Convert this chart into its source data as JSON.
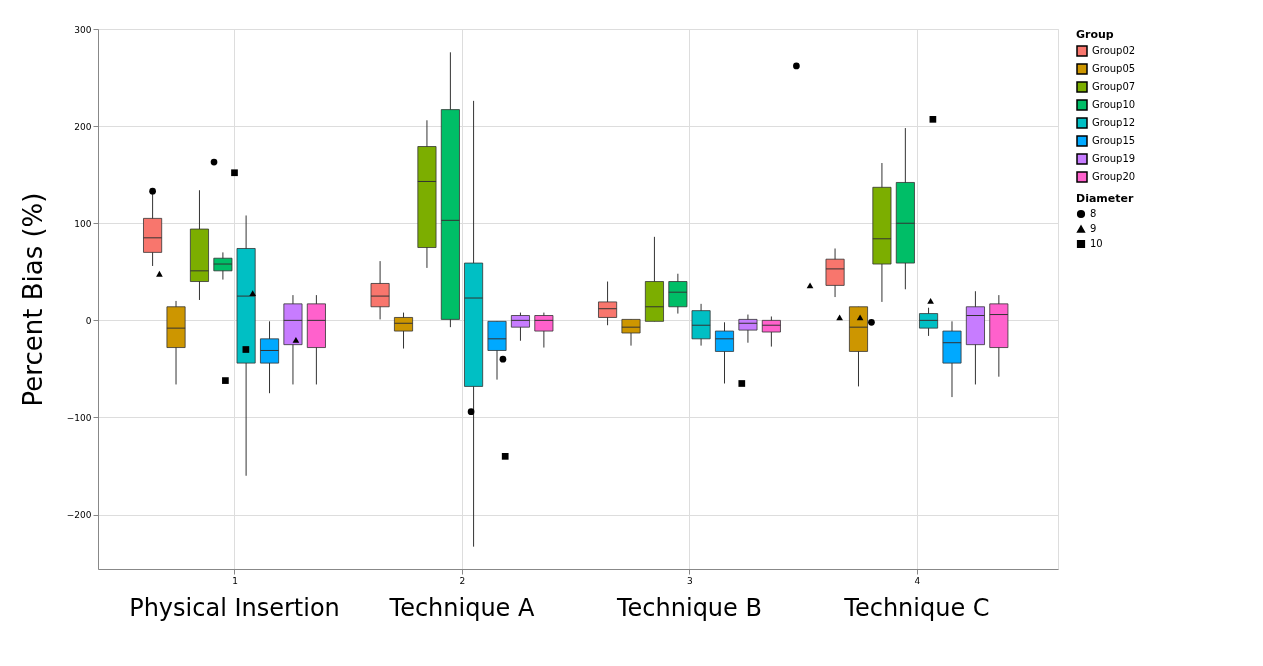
{
  "chart_data": {
    "type": "box",
    "ylabel": "Percent Bias (%)",
    "legend_title": [
      "Group",
      "Diameter"
    ],
    "legend": "right",
    "grid": true,
    "xlim": [
      0.4,
      4.62
    ],
    "xticks": [
      1,
      2,
      3,
      4
    ],
    "ylim": [
      -256,
      300
    ],
    "yticks": [
      -200,
      -100,
      0,
      100,
      200,
      300
    ],
    "annotations": [
      "Physical Insertion",
      "Technique A",
      "Technique B",
      "Technique C"
    ],
    "series": [
      {
        "name": "Group02",
        "color": "#f8766d",
        "x": [
          0.64,
          1.64,
          2.64,
          3.64
        ],
        "boxes": [
          {
            "low": 56,
            "q1": 70,
            "median": 85,
            "q3": 105,
            "high": 133
          },
          {
            "low": 1,
            "q1": 14,
            "median": 25,
            "q3": 38,
            "high": 61
          },
          {
            "low": -5,
            "q1": 3,
            "median": 12,
            "q3": 19,
            "high": 40
          },
          {
            "low": 24,
            "q1": 36,
            "median": 53,
            "q3": 63,
            "high": 74
          }
        ]
      },
      {
        "name": "Group05",
        "color": "#cd9600",
        "x": [
          0.743,
          1.743,
          2.743,
          3.743
        ],
        "boxes": [
          {
            "low": -66,
            "q1": -28,
            "median": -8,
            "q3": 14,
            "high": 20
          },
          {
            "low": -29,
            "q1": -11,
            "median": -3,
            "q3": 3,
            "high": 8
          },
          {
            "low": -26,
            "q1": -13,
            "median": -7,
            "q3": 1,
            "high": 1
          },
          {
            "low": -68,
            "q1": -32,
            "median": -7,
            "q3": 14,
            "high": 14
          }
        ]
      },
      {
        "name": "Group07",
        "color": "#7cae00",
        "x": [
          0.846,
          1.846,
          2.846,
          3.846
        ],
        "boxes": [
          {
            "low": 21,
            "q1": 40,
            "median": 51,
            "q3": 94,
            "high": 134
          },
          {
            "low": 54,
            "q1": 75,
            "median": 143,
            "q3": 179,
            "high": 206
          },
          {
            "low": -1,
            "q1": -1,
            "median": 14,
            "q3": 40,
            "high": 86
          },
          {
            "low": 19,
            "q1": 58,
            "median": 84,
            "q3": 137,
            "high": 162
          }
        ]
      },
      {
        "name": "Group10",
        "color": "#00be67",
        "x": [
          0.949,
          1.949,
          2.949,
          3.949
        ],
        "boxes": [
          {
            "low": 42,
            "q1": 51,
            "median": 58,
            "q3": 64,
            "high": 70
          },
          {
            "low": -7,
            "q1": 1,
            "median": 103,
            "q3": 217,
            "high": 276
          },
          {
            "low": 7,
            "q1": 14,
            "median": 29,
            "q3": 40,
            "high": 48
          },
          {
            "low": 32,
            "q1": 59,
            "median": 100,
            "q3": 142,
            "high": 198
          }
        ]
      },
      {
        "name": "Group12",
        "color": "#00bfc4",
        "x": [
          1.051,
          2.051,
          3.051,
          4.051
        ],
        "boxes": [
          {
            "low": -160,
            "q1": -44,
            "median": 25,
            "q3": 74,
            "high": 108
          },
          {
            "low": -233,
            "q1": -68,
            "median": 23,
            "q3": 59,
            "high": 226
          },
          {
            "low": -26,
            "q1": -19,
            "median": -5,
            "q3": 10,
            "high": 17
          },
          {
            "low": -16,
            "q1": -8,
            "median": 0,
            "q3": 7,
            "high": 13
          }
        ]
      },
      {
        "name": "Group15",
        "color": "#00a9ff",
        "x": [
          1.154,
          2.154,
          3.154,
          4.154
        ],
        "boxes": [
          {
            "low": -75,
            "q1": -44,
            "median": -31,
            "q3": -19,
            "high": -1
          },
          {
            "low": -61,
            "q1": -31,
            "median": -19,
            "q3": -1,
            "high": -1
          },
          {
            "low": -65,
            "q1": -32,
            "median": -19,
            "q3": -11,
            "high": -2
          },
          {
            "low": -79,
            "q1": -44,
            "median": -23,
            "q3": -11,
            "high": -1
          }
        ]
      },
      {
        "name": "Group19",
        "color": "#c77cff",
        "x": [
          1.257,
          2.257,
          3.257,
          4.257
        ],
        "boxes": [
          {
            "low": -66,
            "q1": -25,
            "median": 0,
            "q3": 17,
            "high": 26
          },
          {
            "low": -21,
            "q1": -7,
            "median": 0,
            "q3": 5,
            "high": 8
          },
          {
            "low": -23,
            "q1": -10,
            "median": -3,
            "q3": 1,
            "high": 6
          },
          {
            "low": -66,
            "q1": -25,
            "median": 5,
            "q3": 14,
            "high": 30
          }
        ]
      },
      {
        "name": "Group20",
        "color": "#ff61cc",
        "x": [
          1.36,
          2.36,
          3.36,
          4.36
        ],
        "boxes": [
          {
            "low": -66,
            "q1": -28,
            "median": 0,
            "q3": 17,
            "high": 26
          },
          {
            "low": -28,
            "q1": -11,
            "median": 0,
            "q3": 5,
            "high": 8
          },
          {
            "low": -27,
            "q1": -12,
            "median": -5,
            "q3": 0,
            "high": 4
          },
          {
            "low": -58,
            "q1": -28,
            "median": 6,
            "q3": 17,
            "high": 26
          }
        ]
      },
      {
        "name": "8",
        "type": "scatter",
        "marker": "circle",
        "color": "#000000",
        "x": [
          0.91,
          0.64,
          2.04,
          3.47,
          2.18,
          3.8
        ],
        "values": [
          163,
          133,
          -94,
          262,
          -40,
          -2
        ]
      },
      {
        "name": "9",
        "type": "scatter",
        "marker": "triangle",
        "color": "#000000",
        "x": [
          0.67,
          1.08,
          1.27,
          3.53,
          3.66,
          3.75,
          4.06
        ],
        "values": [
          48,
          28,
          -20,
          36,
          3,
          3,
          20
        ]
      },
      {
        "name": "10",
        "type": "scatter",
        "marker": "square",
        "color": "#000000",
        "x": [
          1.0,
          0.96,
          2.19,
          3.23,
          4.07,
          1.05
        ],
        "values": [
          152,
          -62,
          -140,
          -65,
          207,
          -30
        ]
      }
    ]
  }
}
